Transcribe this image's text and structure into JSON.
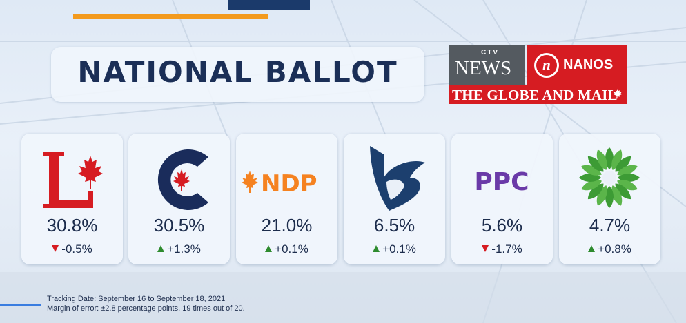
{
  "title": "NATIONAL BALLOT",
  "logos": {
    "ctv": "CTV",
    "news": "NEWS",
    "nanos": "NANOS",
    "globe": "THE GLOBE AND MAIL"
  },
  "colors": {
    "liberal": "#d61c22",
    "conservative": "#1a2c5b",
    "ndp": "#f58220",
    "bloc": "#1c3f6e",
    "ppc": "#6a3aa8",
    "green": "#3d9b35",
    "down": "#d61c22",
    "up": "#2e8b2e"
  },
  "chart_data": {
    "type": "table",
    "categories": [
      "Liberal",
      "Conservative",
      "NDP",
      "Bloc Québécois",
      "PPC",
      "Green"
    ],
    "values": [
      30.8,
      30.5,
      21.0,
      6.5,
      5.6,
      4.7
    ],
    "value_labels": [
      "30.8%",
      "30.5%",
      "21.0%",
      "6.5%",
      "5.6%",
      "4.7%"
    ],
    "changes": [
      -0.5,
      1.3,
      0.1,
      0.1,
      -1.7,
      0.8
    ],
    "change_labels": [
      "-0.5%",
      "+1.3%",
      "+0.1%",
      "+0.1%",
      "-1.7%",
      "+0.8%"
    ],
    "directions": [
      "down",
      "up",
      "up",
      "up",
      "down",
      "up"
    ]
  },
  "footer": {
    "tracking": "Tracking Date: September 16 to September 18, 2021",
    "margin": "Margin of error: ±2.8 percentage points, 19 times out of 20."
  },
  "party_logos": {
    "ndp_text": "NDP",
    "ppc_text": "PPC"
  }
}
